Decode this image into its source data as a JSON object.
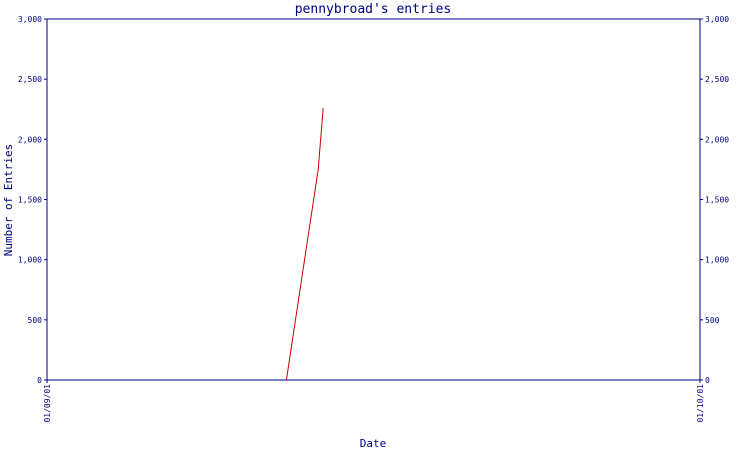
{
  "chart_data": {
    "type": "line",
    "title": "pennybroad's entries",
    "xlabel": "Date",
    "ylabel": "Number of Entries",
    "ylim": [
      0,
      3000
    ],
    "yticks": [
      "0",
      "500",
      "1,000",
      "1,500",
      "2,000",
      "2,500",
      "3,000"
    ],
    "ytick_values": [
      0,
      500,
      1000,
      1500,
      2000,
      2500,
      3000
    ],
    "xlim": [
      "2001-09-01",
      "2001-10-01"
    ],
    "xticks": [
      "01/09/01",
      "01/10/01"
    ],
    "grid": false,
    "series": [
      {
        "x": [
          "2001-09-12",
          "2001-09-13",
          "2001-09-13"
        ],
        "y": [
          0,
          1750,
          2260
        ]
      }
    ],
    "colors": {
      "axis": "#000080",
      "line": "#cc0000",
      "background": "#ffffff"
    }
  }
}
